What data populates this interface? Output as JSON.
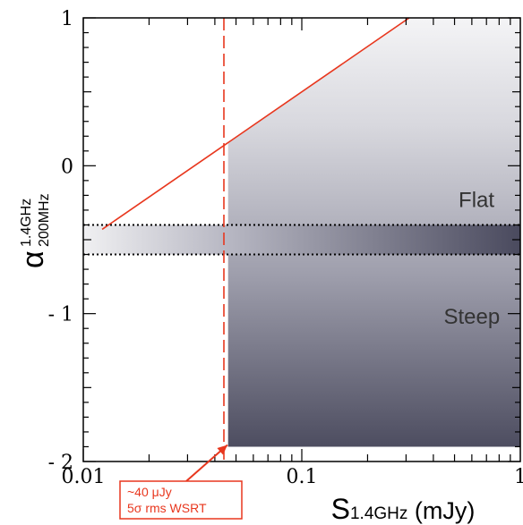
{
  "chart_data": {
    "type": "line",
    "x_scale": "log",
    "xlim": [
      0.01,
      1
    ],
    "ylim": [
      -2,
      1
    ],
    "x_tick_labels": [
      {
        "value": 0.01,
        "label": "0.01"
      },
      {
        "value": 0.1,
        "label": "0.1"
      },
      {
        "value": 1,
        "label": "1"
      }
    ],
    "y_tick_labels": [
      {
        "value": 1,
        "label": "1"
      },
      {
        "value": 0,
        "label": "0"
      },
      {
        "value": -1,
        "label": "- 1"
      },
      {
        "value": -2,
        "label": "- 2"
      }
    ],
    "xlabel": {
      "main": "S",
      "sub": "1.4GHz",
      "rest": " (mJy)"
    },
    "ylabel": {
      "main": "α",
      "sup": "1.4GHz",
      "sub": "200MHz"
    },
    "limit_line": {
      "x": [
        0.0122,
        0.31
      ],
      "y": [
        -0.43,
        1.0
      ]
    },
    "rms_threshold": {
      "x": 0.044
    },
    "shaded_region": {
      "x_start": 0.046,
      "x_end": 1,
      "y_bottom": -1.9
    },
    "flat_steep_band": {
      "y_top": -0.4,
      "y_bottom": -0.6
    },
    "regions": [
      {
        "label": "Flat",
        "x": 0.63,
        "y": -0.23
      },
      {
        "label": "Steep",
        "x": 0.6,
        "y": -1.02
      }
    ],
    "annotation": {
      "lines": [
        "~40 μJy",
        "5σ rms WSRT"
      ],
      "target": {
        "x": 0.044,
        "y": -1.9
      }
    }
  },
  "colors": {
    "limit_line": "#e8371e",
    "callout": "#e8371e",
    "region_light": "#f4f4f6",
    "region_dark": "#4d4d60",
    "band_dark": "#4a4a5e",
    "text_grey": "#333333"
  }
}
